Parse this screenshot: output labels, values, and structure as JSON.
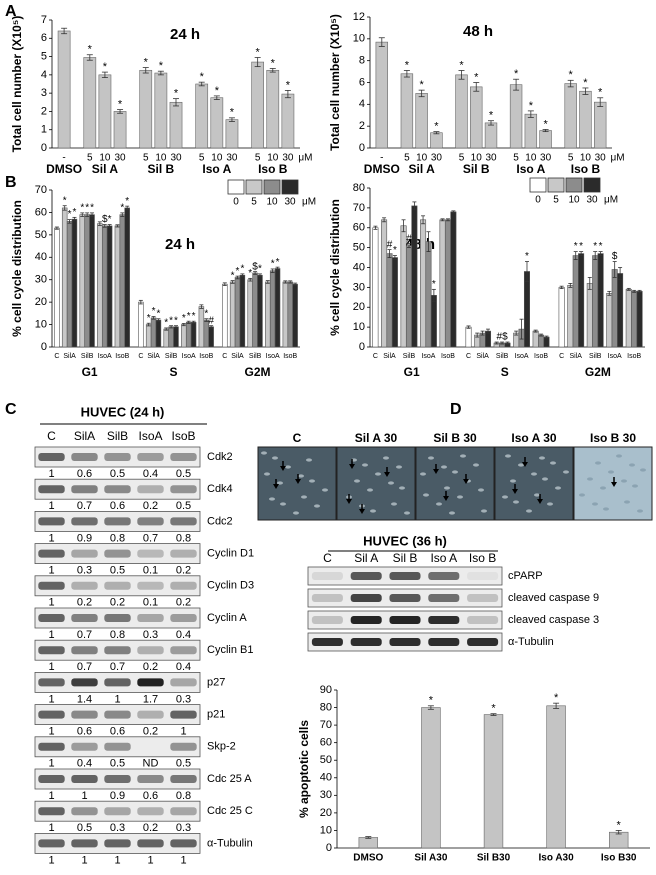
{
  "panel_labels": [
    "A",
    "B",
    "C",
    "D"
  ],
  "chart_data": [
    {
      "type": "bar",
      "title": "24 h",
      "ylabel": "Total cell number (X10⁵)",
      "color": "#c4c4c4",
      "categories": [
        "-",
        "5",
        "10",
        "30",
        "5",
        "10",
        "30",
        "5",
        "10",
        "30",
        "5",
        "10",
        "30"
      ],
      "groups": [
        "DMSO",
        "Sil A",
        "Sil B",
        "Iso A",
        "Iso B"
      ],
      "unit": "μM",
      "values": [
        6.4,
        4.95,
        4.0,
        2.0,
        4.25,
        4.1,
        2.5,
        3.5,
        2.75,
        1.55,
        4.7,
        4.25,
        2.95
      ],
      "errors": [
        0.15,
        0.15,
        0.15,
        0.1,
        0.15,
        0.1,
        0.2,
        0.1,
        0.1,
        0.1,
        0.25,
        0.1,
        0.2
      ],
      "markers": [
        null,
        "*",
        "*",
        "*",
        "*",
        "*",
        "*",
        "*",
        "*",
        "*",
        "*",
        "*",
        "*"
      ],
      "ylim": [
        0,
        7
      ],
      "yticks": [
        0,
        1,
        2,
        3,
        4,
        5,
        6,
        7
      ]
    },
    {
      "type": "bar",
      "title": "48 h",
      "ylabel": "Total cell number (X10⁵)",
      "color": "#c4c4c4",
      "categories": [
        "-",
        "5",
        "10",
        "30",
        "5",
        "10",
        "30",
        "5",
        "10",
        "30",
        "5",
        "10",
        "30"
      ],
      "groups": [
        "DMSO",
        "Sil A",
        "Sil B",
        "Iso A",
        "Iso B"
      ],
      "unit": "μM",
      "values": [
        9.7,
        6.8,
        5.0,
        1.4,
        6.7,
        5.6,
        2.3,
        5.8,
        3.1,
        1.6,
        5.9,
        5.2,
        4.2
      ],
      "errors": [
        0.4,
        0.3,
        0.3,
        0.1,
        0.4,
        0.4,
        0.2,
        0.5,
        0.3,
        0.1,
        0.3,
        0.3,
        0.4
      ],
      "markers": [
        null,
        "*",
        "*",
        "*",
        "*",
        "*",
        "*",
        "*",
        "*",
        "*",
        "*",
        "*",
        "*"
      ],
      "ylim": [
        0,
        12
      ],
      "yticks": [
        0,
        2,
        4,
        6,
        8,
        10,
        12
      ]
    },
    {
      "type": "grouped_bar",
      "title": "24 h",
      "ylabel": "% cell cycle distribution",
      "unit": "μM",
      "categories": [
        "C",
        "SilA",
        "SilB",
        "IsoA",
        "IsoB",
        "C",
        "SilA",
        "SilB",
        "IsoA",
        "IsoB",
        "C",
        "SilA",
        "SilB",
        "IsoA",
        "IsoB"
      ],
      "groups": [
        "G1",
        "S",
        "G2M"
      ],
      "series": [
        {
          "name": "0",
          "color": "#ffffff",
          "values": [
            53,
            null,
            null,
            null,
            null,
            20,
            null,
            null,
            null,
            null,
            28,
            null,
            null,
            null,
            null
          ],
          "errors": [
            0.5,
            null,
            null,
            null,
            null,
            0.8,
            null,
            null,
            null,
            null,
            0.6,
            null,
            null,
            null,
            null
          ],
          "markers": [
            null,
            null,
            null,
            null,
            null,
            null,
            null,
            null,
            null,
            null,
            null,
            null,
            null,
            null,
            null
          ]
        },
        {
          "name": "5",
          "color": "#c8c8c8",
          "values": [
            null,
            62,
            59,
            55,
            54,
            null,
            10,
            8,
            10,
            18,
            null,
            29,
            30,
            29,
            29
          ],
          "errors": [
            null,
            1,
            0.8,
            0.8,
            0.5,
            null,
            0.6,
            0.5,
            0.5,
            0.8,
            null,
            0.6,
            0.6,
            0.6,
            0.5
          ],
          "markers": [
            null,
            "*",
            "*",
            null,
            null,
            null,
            "*",
            "*",
            "*",
            null,
            null,
            "*",
            "*",
            null,
            null
          ]
        },
        {
          "name": "10",
          "color": "#8c8c8c",
          "values": [
            null,
            56,
            59,
            54,
            59,
            null,
            13,
            9,
            11,
            12,
            null,
            31,
            33,
            34,
            29
          ],
          "errors": [
            null,
            0.8,
            0.8,
            0.6,
            0.8,
            null,
            0.6,
            0.5,
            0.5,
            0.6,
            null,
            0.6,
            0.6,
            0.8,
            0.5
          ],
          "markers": [
            null,
            "*",
            "*",
            "$",
            "*",
            null,
            "*",
            "*",
            "*",
            "*",
            null,
            "*",
            "$",
            "*",
            null
          ]
        },
        {
          "name": "30",
          "color": "#2b2b2b",
          "values": [
            null,
            57,
            59,
            54,
            62,
            null,
            12,
            9,
            11,
            9,
            null,
            32,
            32,
            35,
            28
          ],
          "errors": [
            null,
            0.8,
            0.8,
            0.6,
            0.8,
            null,
            0.6,
            0.5,
            0.5,
            0.5,
            null,
            0.6,
            0.6,
            0.6,
            0.5
          ],
          "markers": [
            null,
            "*",
            "*",
            "*",
            "*",
            null,
            "*",
            "*",
            "*",
            "#",
            null,
            "*",
            "*",
            "*",
            null
          ]
        }
      ],
      "ylim": [
        0,
        70
      ],
      "yticks": [
        0,
        10,
        20,
        30,
        40,
        50,
        60,
        70
      ]
    },
    {
      "type": "grouped_bar",
      "title": "48 h",
      "ylabel": "% cell cycle distribution",
      "unit": "μM",
      "categories": [
        "C",
        "SilA",
        "SilB",
        "IsoA",
        "IsoB",
        "C",
        "SilA",
        "SilB",
        "IsoA",
        "IsoB",
        "C",
        "SilA",
        "SilB",
        "IsoA",
        "IsoB"
      ],
      "groups": [
        "G1",
        "S",
        "G2M"
      ],
      "series": [
        {
          "name": "0",
          "color": "#ffffff",
          "values": [
            60,
            null,
            null,
            null,
            null,
            10,
            null,
            null,
            null,
            null,
            30,
            null,
            null,
            null,
            null
          ],
          "errors": [
            0.8,
            null,
            null,
            null,
            null,
            0.6,
            null,
            null,
            null,
            null,
            0.6,
            null,
            null,
            null,
            null
          ],
          "markers": [
            null,
            null,
            null,
            null,
            null,
            null,
            null,
            null,
            null,
            null,
            null,
            null,
            null,
            null,
            null
          ]
        },
        {
          "name": "5",
          "color": "#c8c8c8",
          "values": [
            null,
            64,
            61,
            64,
            64,
            null,
            6,
            2,
            7,
            8,
            null,
            31,
            32,
            27,
            29
          ],
          "errors": [
            null,
            1,
            3,
            2,
            0.5,
            null,
            1,
            0.5,
            1,
            0.5,
            null,
            1,
            3,
            1,
            0.5
          ],
          "markers": [
            null,
            null,
            null,
            null,
            null,
            null,
            null,
            null,
            null,
            null,
            null,
            null,
            null,
            null,
            null
          ]
        },
        {
          "name": "10",
          "color": "#8c8c8c",
          "values": [
            null,
            47,
            51,
            53,
            64,
            null,
            7,
            2,
            9,
            6,
            null,
            46,
            46,
            39,
            28
          ],
          "errors": [
            null,
            2,
            1,
            5,
            0.5,
            null,
            1,
            0.5,
            5,
            0.5,
            null,
            2,
            2,
            4,
            0.5
          ],
          "markers": [
            null,
            "#",
            "#",
            null,
            null,
            null,
            null,
            "#$",
            null,
            null,
            null,
            "*",
            "*",
            "$",
            null
          ]
        },
        {
          "name": "30",
          "color": "#2b2b2b",
          "values": [
            null,
            45,
            71,
            26,
            68,
            null,
            8,
            2,
            38,
            5,
            null,
            47,
            47,
            37,
            28
          ],
          "errors": [
            null,
            1,
            2,
            3,
            0.5,
            null,
            1,
            0.5,
            5,
            0.5,
            null,
            1,
            1,
            3,
            0.5
          ],
          "markers": [
            null,
            "*",
            null,
            "*",
            null,
            null,
            null,
            null,
            "*",
            null,
            null,
            "*",
            "*",
            null,
            null
          ]
        }
      ],
      "ylim": [
        0,
        80
      ],
      "yticks": [
        0,
        10,
        20,
        30,
        40,
        50,
        60,
        70,
        80
      ]
    },
    {
      "type": "bar",
      "ylabel": "% apoptotic cells",
      "color": "#c4c4c4",
      "categories": [
        "DMSO",
        "Sil A30",
        "Sil B30",
        "Iso A30",
        "Iso B30"
      ],
      "values": [
        6,
        80,
        76,
        81,
        9
      ],
      "errors": [
        0.5,
        1,
        0.5,
        1.5,
        1
      ],
      "markers": [
        null,
        "*",
        "*",
        "*",
        "*"
      ],
      "ylim": [
        0,
        90
      ],
      "yticks": [
        0,
        10,
        20,
        30,
        40,
        50,
        60,
        70,
        80,
        90
      ]
    }
  ],
  "blot_c": {
    "title": "HUVEC (24 h)",
    "lanes": [
      "C",
      "SilA",
      "SilB",
      "IsoA",
      "IsoB"
    ],
    "rows": [
      {
        "name": "Cdk2",
        "values": [
          1,
          0.6,
          0.5,
          0.4,
          0.5
        ]
      },
      {
        "name": "Cdk4",
        "values": [
          1,
          0.7,
          0.6,
          0.2,
          0.5
        ]
      },
      {
        "name": "Cdc2",
        "values": [
          1,
          0.9,
          0.8,
          0.7,
          0.8
        ]
      },
      {
        "name": "Cyclin D1",
        "values": [
          1,
          0.3,
          0.5,
          0.1,
          0.2
        ]
      },
      {
        "name": "Cyclin D3",
        "values": [
          1,
          0.2,
          0.2,
          0.1,
          0.2
        ]
      },
      {
        "name": "Cyclin A",
        "values": [
          1,
          0.7,
          0.8,
          0.3,
          0.4
        ]
      },
      {
        "name": "Cyclin B1",
        "values": [
          1,
          0.7,
          0.7,
          0.2,
          0.4
        ]
      },
      {
        "name": "p27",
        "values": [
          1,
          1.4,
          1,
          1.7,
          0.3
        ]
      },
      {
        "name": "p21",
        "values": [
          1,
          0.6,
          0.6,
          0.2,
          1
        ]
      },
      {
        "name": "Skp-2",
        "values": [
          1,
          0.4,
          0.5,
          "ND",
          0.5
        ]
      },
      {
        "name": "Cdc 25 A",
        "values": [
          1,
          1,
          0.9,
          0.6,
          0.8
        ]
      },
      {
        "name": "Cdc 25 C",
        "values": [
          1,
          0.5,
          0.3,
          0.2,
          0.3
        ]
      },
      {
        "name": "α-Tubulin",
        "values": [
          1,
          1,
          1,
          1,
          1
        ]
      }
    ]
  },
  "micrographs": {
    "labels": [
      "C",
      "Sil A 30",
      "Sil B 30",
      "Iso A 30",
      "Iso B 30"
    ]
  },
  "blot_d": {
    "title": "HUVEC (36 h)",
    "lanes": [
      "C",
      "Sil A",
      "Sil B",
      "Iso A",
      "Iso B"
    ],
    "rows": [
      "cPARP",
      "cleaved caspase 9",
      "cleaved caspase 3",
      "α-Tubulin"
    ]
  }
}
